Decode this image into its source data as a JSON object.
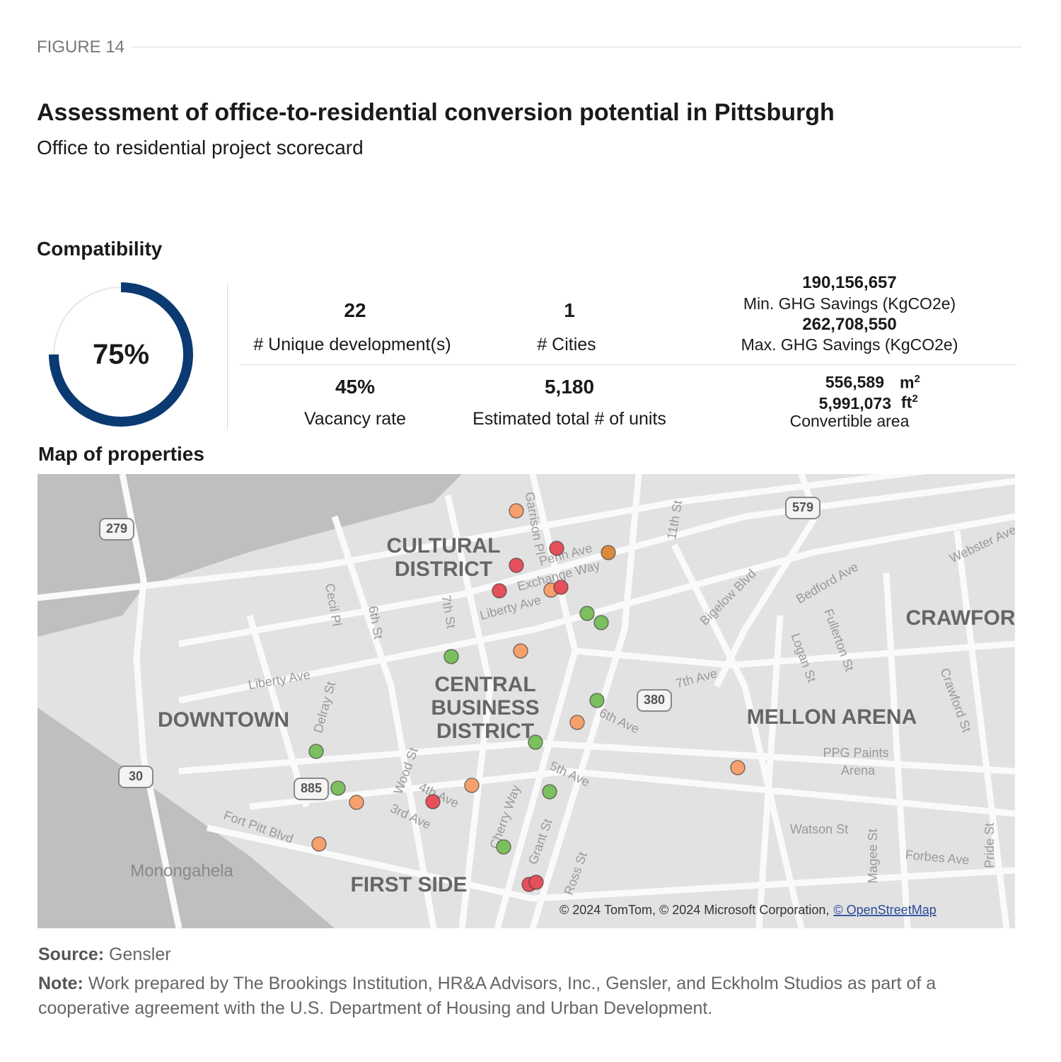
{
  "figure_label": "FIGURE 14",
  "title": "Assessment of office-to-residential conversion potential in Pittsburgh",
  "subtitle": "Office to residential project scorecard",
  "compatibility": {
    "heading": "Compatibility",
    "score": {
      "value": 75,
      "label": "75%"
    }
  },
  "metrics": [
    {
      "value": "22",
      "label": "# Unique development(s)"
    },
    {
      "value": "1",
      "label": "# Cities"
    },
    {
      "value": "45%",
      "label": "Vacancy rate"
    },
    {
      "value": "5,180",
      "label": "Estimated total # of units"
    }
  ],
  "ghg": {
    "min_value": "190,156,657",
    "min_label": "Min. GHG Savings (KgCO2e)",
    "max_value": "262,708,550",
    "max_label": "Max. GHG Savings (KgCO2e)"
  },
  "area": {
    "m2_value": "556,589",
    "m2_unit": "m",
    "ft2_value": "5,991,073",
    "ft2_unit": "ft",
    "exponent": "2",
    "label": "Convertible area"
  },
  "map": {
    "heading": "Map of properties",
    "labels": [
      "CULTURAL",
      "DISTRICT",
      "CENTRAL",
      "BUSINESS",
      "DISTRICT",
      "DOWNTOWN",
      "MELLON ARENA",
      "CRAWFOR",
      "FIRST SIDE",
      "Monongahela",
      "PPG Paints",
      "Arena",
      "Liberty Ave",
      "Liberty Ave",
      "Penn Ave",
      "Exchange Way",
      "7th St",
      "6th St",
      "Cecil Pl",
      "Garrison Pl",
      "11th St",
      "Bigelow Blvd",
      "Bedford Ave",
      "Fullerton St",
      "Logan St",
      "Webster Ave",
      "7th Ave",
      "6th Ave",
      "5th Ave",
      "4th Ave",
      "3rd Ave",
      "Wood St",
      "Delray St",
      "Fort Pitt Blvd",
      "Cherry Way",
      "Grant St",
      "Ross St",
      "Crawford St",
      "Watson St",
      "Forbes Ave",
      "Magee St",
      "Pride St"
    ],
    "highways": [
      "279",
      "579",
      "380",
      "30",
      "885"
    ],
    "attribution": "© 2024 TomTom, © 2024 Microsoft Corporation,",
    "attribution_link": "© OpenStreetMap"
  },
  "source": {
    "label": "Source:",
    "text": "Gensler"
  },
  "note": {
    "label": "Note:",
    "text": "Work prepared by The Brookings Institution, HR&A Advisors, Inc., Gensler, and Eckholm Studios as part of a cooperative agreement with the U.S. Department of Housing and Urban Development."
  }
}
